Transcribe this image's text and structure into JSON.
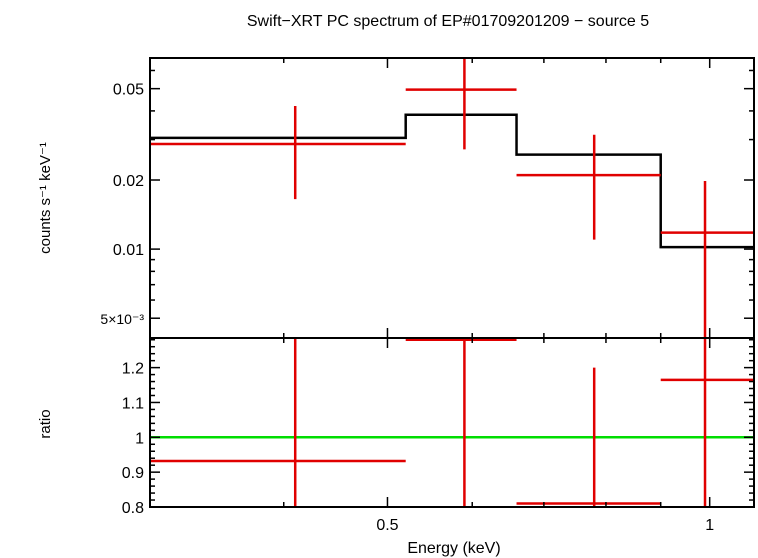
{
  "chart_data": {
    "type": "spectrum",
    "title": "Swift−XRT PC spectrum of EP#01709201209 − source 5",
    "xlabel": "Energy (keV)",
    "xscale": "log",
    "xlim": [
      0.3,
      1.1
    ],
    "x_ticks": [
      {
        "value": 0.5,
        "label": "0.5"
      },
      {
        "value": 1.0,
        "label": "1"
      }
    ],
    "colors": {
      "data": "#e00000",
      "model": "#000000",
      "unity": "#00dd00",
      "frame": "#000000"
    },
    "panels": {
      "spectrum": {
        "ylabel": "counts s⁻¹ keV⁻¹",
        "yscale": "log",
        "ylim": [
          0.0041,
          0.068
        ],
        "y_ticks": [
          {
            "value": 0.05,
            "label": "0.05"
          },
          {
            "value": 0.02,
            "label": "0.02"
          },
          {
            "value": 0.01,
            "label": "0.01"
          },
          {
            "value": 0.005,
            "label": "5×10⁻³"
          }
        ],
        "data": [
          {
            "xlo": 0.3,
            "xhi": 0.52,
            "x": 0.41,
            "y": 0.0287,
            "ylo": 0.0165,
            "yhi": 0.042
          },
          {
            "xlo": 0.52,
            "xhi": 0.66,
            "x": 0.59,
            "y": 0.0495,
            "ylo": 0.0272,
            "yhi": 0.07
          },
          {
            "xlo": 0.66,
            "xhi": 0.9,
            "x": 0.78,
            "y": 0.021,
            "ylo": 0.011,
            "yhi": 0.0315
          },
          {
            "xlo": 0.9,
            "xhi": 1.1,
            "x": 0.99,
            "y": 0.0118,
            "ylo": 0.003,
            "yhi": 0.0198
          }
        ],
        "model": [
          {
            "xlo": 0.3,
            "xhi": 0.52,
            "y": 0.0305
          },
          {
            "xlo": 0.52,
            "xhi": 0.66,
            "y": 0.0385
          },
          {
            "xlo": 0.66,
            "xhi": 0.9,
            "y": 0.0258
          },
          {
            "xlo": 0.9,
            "xhi": 1.1,
            "y": 0.0102
          }
        ]
      },
      "ratio": {
        "ylabel": "ratio",
        "yscale": "linear",
        "ylim": [
          0.8,
          1.285
        ],
        "y_ticks": [
          {
            "value": 0.8,
            "label": "0.8"
          },
          {
            "value": 0.9,
            "label": "0.9"
          },
          {
            "value": 1.0,
            "label": "1"
          },
          {
            "value": 1.1,
            "label": "1.1"
          },
          {
            "value": 1.2,
            "label": "1.2"
          }
        ],
        "unity": 1.0,
        "data": [
          {
            "xlo": 0.3,
            "xhi": 0.52,
            "x": 0.41,
            "y": 0.932,
            "ylo": 0.55,
            "yhi": 1.33
          },
          {
            "xlo": 0.52,
            "xhi": 0.66,
            "x": 0.59,
            "y": 1.28,
            "ylo": 0.7,
            "yhi": 1.33
          },
          {
            "xlo": 0.66,
            "xhi": 0.9,
            "x": 0.78,
            "y": 0.81,
            "ylo": 0.43,
            "yhi": 1.2
          },
          {
            "xlo": 0.9,
            "xhi": 1.1,
            "x": 0.99,
            "y": 1.165,
            "ylo": 0.3,
            "yhi": 1.9
          }
        ]
      }
    }
  }
}
